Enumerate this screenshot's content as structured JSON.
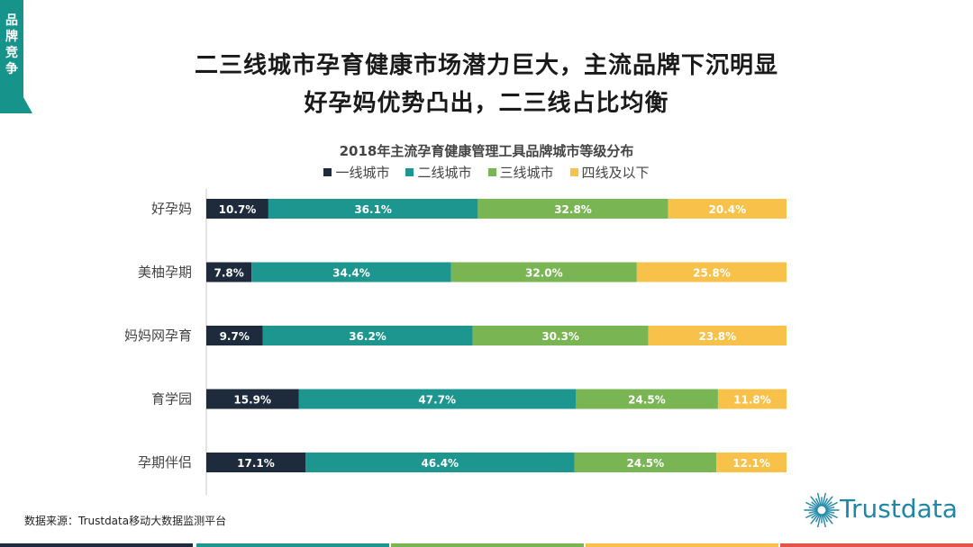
{
  "side_tab": {
    "label": "品牌竞争",
    "color": "#16948b"
  },
  "headline": {
    "line1": "二三线城市孕育健康市场潜力巨大，主流品牌下沉明显",
    "line2": "好孕妈优势凸出，二三线占比均衡"
  },
  "chart_data": {
    "type": "bar",
    "orientation": "horizontal",
    "stacked": true,
    "title": "2018年主流孕育健康管理工具品牌城市等级分布",
    "categories": [
      "好孕妈",
      "美柚孕期",
      "妈妈网孕育",
      "育学园",
      "孕期伴侣"
    ],
    "series": [
      {
        "name": "一线城市",
        "color": "#1e2b3c",
        "values": [
          10.7,
          7.8,
          9.7,
          15.9,
          17.1
        ]
      },
      {
        "name": "二线城市",
        "color": "#1e9690",
        "values": [
          36.1,
          34.4,
          36.2,
          47.7,
          46.4
        ]
      },
      {
        "name": "三线城市",
        "color": "#79b653",
        "values": [
          32.8,
          32.0,
          30.3,
          24.5,
          24.5
        ]
      },
      {
        "name": "四线及以下",
        "color": "#f8c14a",
        "values": [
          20.4,
          25.8,
          23.8,
          11.8,
          12.1
        ]
      }
    ],
    "value_format": "percent_1dp",
    "legend_position": "top",
    "xlim": [
      0,
      100
    ],
    "grid": false
  },
  "source": {
    "text": "数据来源：Trustdata移动大数据监测平台"
  },
  "logo": {
    "text": "Trustdata",
    "color": "#1e87a8"
  },
  "footer_colors": [
    "#1e2b3c",
    "#1e9690",
    "#79b653",
    "#f8c14a",
    "#e4534a"
  ]
}
